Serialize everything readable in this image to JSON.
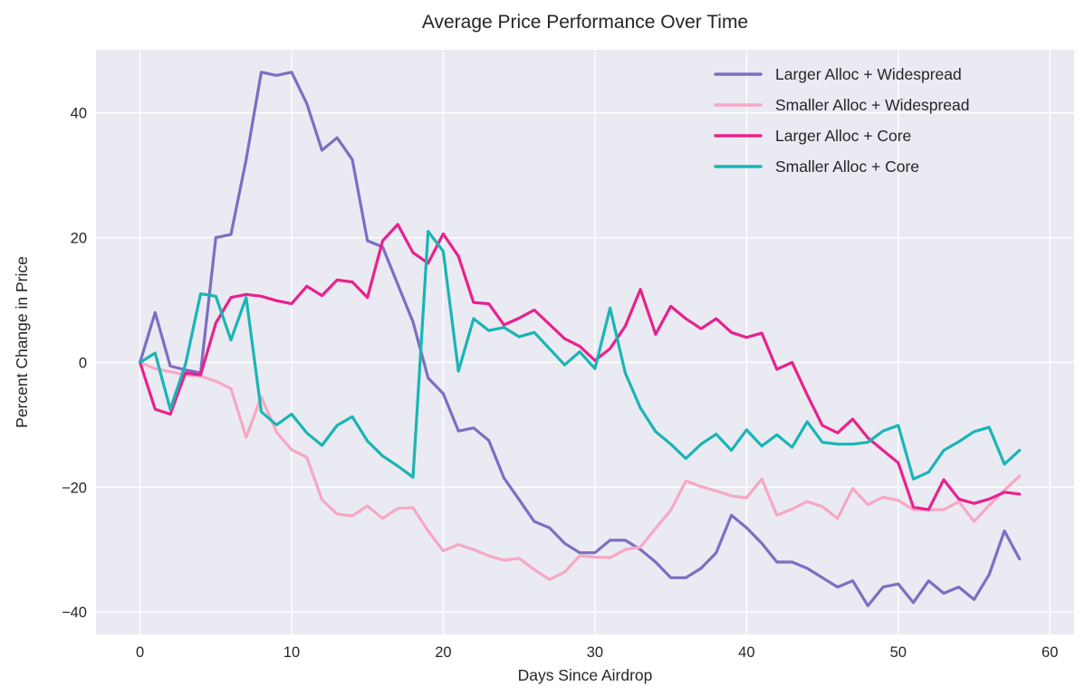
{
  "title": "Average Price Performance Over Time",
  "colors": {
    "figure_background": "#ffffff",
    "plot_background": "#eaeaf2",
    "grid": "#ffffff",
    "text": "#262626"
  },
  "chart_data": {
    "type": "line",
    "title": "Average Price Performance Over Time",
    "xlabel": "Days Since Airdrop",
    "ylabel": "Percent Change in Price",
    "xlim": [
      -2.9,
      61.6
    ],
    "ylim": [
      -43.6,
      50.1
    ],
    "xticks": [
      0,
      10,
      20,
      30,
      40,
      50,
      60
    ],
    "yticks": [
      -40,
      -20,
      0,
      20,
      40
    ],
    "grid": true,
    "legend_position": "upper right",
    "x": [
      0,
      1,
      2,
      3,
      4,
      5,
      6,
      7,
      8,
      9,
      10,
      11,
      12,
      13,
      14,
      15,
      16,
      17,
      18,
      19,
      20,
      21,
      22,
      23,
      24,
      25,
      26,
      27,
      28,
      29,
      30,
      31,
      32,
      33,
      34,
      35,
      36,
      37,
      38,
      39,
      40,
      41,
      42,
      43,
      44,
      45,
      46,
      47,
      48,
      49,
      50,
      51,
      52,
      53,
      54,
      55,
      56,
      57,
      58
    ],
    "series": [
      {
        "name": "Larger Alloc + Widespread",
        "color": "#7d6ec3",
        "values": [
          0,
          8,
          -0.6,
          -1.2,
          -1.7,
          20,
          20.5,
          32.5,
          46.5,
          46,
          46.5,
          41.5,
          34,
          36,
          32.5,
          19.5,
          18.5,
          12.5,
          6.5,
          -2.5,
          -5,
          -11,
          -10.5,
          -12.5,
          -18.5,
          -22,
          -25.5,
          -26.5,
          -29,
          -30.5,
          -30.5,
          -28.5,
          -28.5,
          -30,
          -32,
          -34.5,
          -34.5,
          -33,
          -30.5,
          -24.5,
          -26.5,
          -29,
          -32,
          -32,
          -33,
          -34.5,
          -36,
          -35,
          -39,
          -36,
          -35.5,
          -38.5,
          -35,
          -37,
          -36,
          -38,
          -34,
          -27,
          -31.5
        ]
      },
      {
        "name": "Smaller Alloc + Widespread",
        "color": "#f7a8c3",
        "values": [
          0,
          -1,
          -1.5,
          -2,
          -2.2,
          -3,
          -4.2,
          -12,
          -5.5,
          -11.2,
          -14,
          -15.2,
          -22,
          -24.3,
          -24.6,
          -23,
          -25,
          -23.4,
          -23.3,
          -27,
          -30.2,
          -29.2,
          -30,
          -31,
          -31.7,
          -31.4,
          -33.2,
          -34.8,
          -33.6,
          -31,
          -31.2,
          -31.3,
          -30,
          -29.6,
          -26.6,
          -23.7,
          -19,
          -19.9,
          -20.6,
          -21.4,
          -21.7,
          -18.7,
          -24.5,
          -23.5,
          -22.3,
          -23.1,
          -25,
          -20.2,
          -22.8,
          -21.6,
          -22.1,
          -23.6,
          -23.6,
          -23.6,
          -22.3,
          -25.5,
          -22.9,
          -20.5,
          -18.2
        ]
      },
      {
        "name": "Larger Alloc + Core",
        "color": "#e9218e",
        "values": [
          0,
          -7.5,
          -8.3,
          -1.7,
          -2,
          6.3,
          10.4,
          10.9,
          10.6,
          9.9,
          9.4,
          12.2,
          10.7,
          13.2,
          12.9,
          10.4,
          19.5,
          22.1,
          17.6,
          15.9,
          20.6,
          17,
          9.6,
          9.4,
          6,
          7.1,
          8.4,
          6.1,
          3.8,
          2.6,
          0.3,
          2.2,
          5.8,
          11.7,
          4.5,
          9,
          7,
          5.4,
          7,
          4.8,
          4,
          4.7,
          -1.1,
          0,
          -5.2,
          -10.1,
          -11.3,
          -9.1,
          -12.1,
          -14.1,
          -16.1,
          -23.2,
          -23.6,
          -18.8,
          -21.9,
          -22.6,
          -21.9,
          -20.8,
          -21.1
        ]
      },
      {
        "name": "Smaller Alloc + Core",
        "color": "#1ab5b5",
        "values": [
          0,
          1.5,
          -7.5,
          -0.3,
          11,
          10.6,
          3.6,
          10.4,
          -7.9,
          -10,
          -8.3,
          -11.3,
          -13.3,
          -10.1,
          -8.7,
          -12.6,
          -15,
          -16.6,
          -18.4,
          21,
          17.8,
          -1.4,
          7,
          5.1,
          5.6,
          4.1,
          4.8,
          2.2,
          -0.4,
          1.7,
          -1,
          8.7,
          -1.7,
          -7.3,
          -11.1,
          -13.1,
          -15.4,
          -13.1,
          -11.5,
          -14.1,
          -10.8,
          -13.4,
          -11.6,
          -13.6,
          -9.5,
          -12.8,
          -13.1,
          -13.1,
          -12.8,
          -11,
          -10.1,
          -18.7,
          -17.6,
          -14.1,
          -12.7,
          -11.1,
          -10.4,
          -16.3,
          -14.1
        ]
      }
    ]
  }
}
